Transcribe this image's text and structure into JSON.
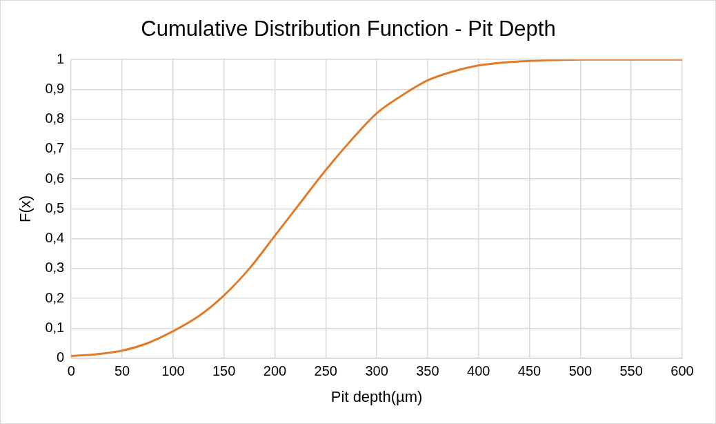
{
  "chart_data": {
    "type": "line",
    "title": "Cumulative Distribution Function - Pit Depth",
    "xlabel": "Pit depth(µm)",
    "ylabel": "F(x)",
    "x": [
      0,
      25,
      50,
      75,
      100,
      125,
      150,
      175,
      200,
      225,
      250,
      275,
      300,
      325,
      350,
      375,
      400,
      425,
      450,
      475,
      500,
      550,
      600
    ],
    "series": [
      {
        "color": "#e07b2a",
        "values": [
          0.007,
          0.013,
          0.025,
          0.05,
          0.09,
          0.14,
          0.21,
          0.3,
          0.41,
          0.52,
          0.63,
          0.73,
          0.82,
          0.88,
          0.93,
          0.96,
          0.98,
          0.99,
          0.995,
          0.998,
          1,
          1,
          1
        ]
      }
    ],
    "xlim": [
      0,
      600
    ],
    "xticks": [
      0,
      50,
      100,
      150,
      200,
      250,
      300,
      350,
      400,
      450,
      500,
      550,
      600
    ],
    "ylim": [
      0,
      1
    ],
    "yticks": [
      0,
      {
        "value": 0.1,
        "label": "0,1"
      },
      {
        "value": 0.2,
        "label": "0,2"
      },
      {
        "value": 0.3,
        "label": "0,3"
      },
      {
        "value": 0.4,
        "label": "0,4"
      },
      {
        "value": 0.5,
        "label": "0,5"
      },
      {
        "value": 0.6,
        "label": "0,6"
      },
      {
        "value": 0.7,
        "label": "0,7"
      },
      {
        "value": 0.8,
        "label": "0,8"
      },
      {
        "value": 0.9,
        "label": "0,9"
      },
      1
    ],
    "grid": true,
    "legend": false,
    "marker": "none",
    "line_style": "solid"
  }
}
